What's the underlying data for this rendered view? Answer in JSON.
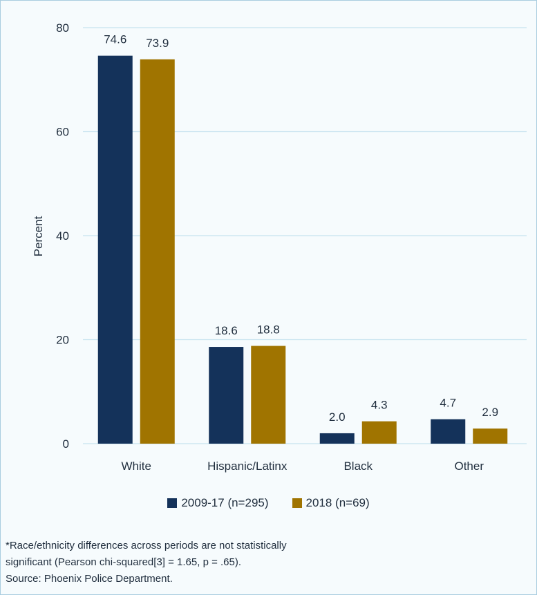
{
  "chart_data": {
    "type": "bar",
    "categories": [
      "White",
      "Hispanic/Latinx",
      "Black",
      "Other"
    ],
    "series": [
      {
        "name": "2009-17 (n=295)",
        "values": [
          74.6,
          18.6,
          2.0,
          4.7
        ],
        "labels": [
          "74.6",
          "18.6",
          "2.0",
          "4.7"
        ],
        "color": "#14325a"
      },
      {
        "name": "2018 (n=69)",
        "values": [
          73.9,
          18.8,
          4.3,
          2.9
        ],
        "labels": [
          "73.9",
          "18.8",
          "4.3",
          "2.9"
        ],
        "color": "#a07400"
      }
    ],
    "ylabel": "Percent",
    "ylim": [
      0,
      80
    ],
    "yticks": [
      "0",
      "20",
      "40",
      "60",
      "80"
    ],
    "grid": true,
    "legend_position": "bottom"
  },
  "notes": [
    "*Race/ethnicity differences across periods are not statistically",
    "significant (Pearson chi-squared[3] = 1.65, p = .65).",
    "Source: Phoenix Police Department."
  ],
  "colors": {
    "gridline": "#c7e3ef",
    "axis": "#c7e3ef",
    "text": "#1f2d3d"
  }
}
